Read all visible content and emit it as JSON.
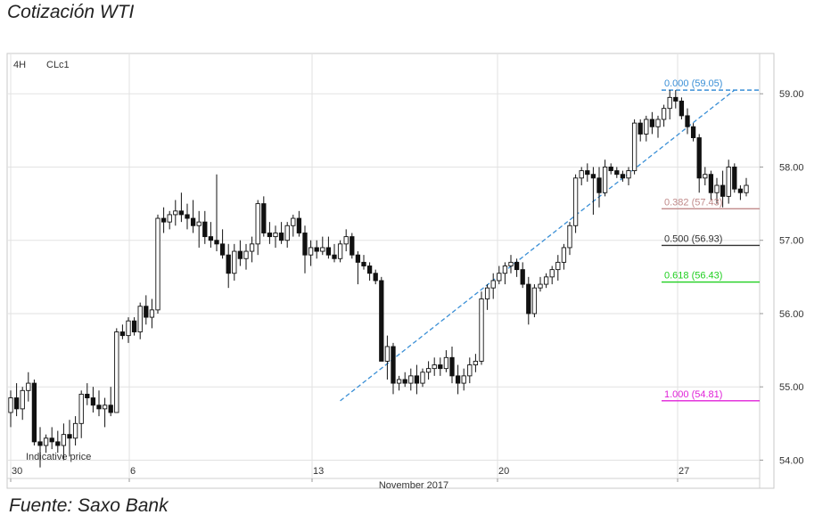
{
  "header": {
    "title": "Cotización WTI"
  },
  "footer": {
    "source": "Fuente: Saxo Bank"
  },
  "chart_data": {
    "type": "candlestick",
    "timeframe": "4H",
    "symbol": "CLc1",
    "note": "Indicative price",
    "xlabel": "November 2017",
    "x_ticks": [
      "30",
      "6",
      "13",
      "20",
      "27"
    ],
    "y_ticks": [
      "54.00",
      "55.00",
      "56.00",
      "57.00",
      "58.00",
      "59.00"
    ],
    "ylim": [
      53.75,
      59.55
    ],
    "grid": true,
    "fib_levels": [
      {
        "label": "0.000 (59.05)",
        "value": 59.05,
        "color": "#3a8fd6"
      },
      {
        "label": "0.382 (57.43)",
        "value": 57.43,
        "color": "#c08a8a"
      },
      {
        "label": "0.500 (56.93)",
        "value": 56.93,
        "color": "#333333"
      },
      {
        "label": "0.618 (56.43)",
        "value": 56.43,
        "color": "#1fcf1f"
      },
      {
        "label": "1.000 (54.81)",
        "value": 54.81,
        "color": "#e020d8"
      }
    ],
    "trend_line": {
      "from": [
        56,
        54.81
      ],
      "to": [
        123,
        59.05
      ]
    },
    "candles": [
      [
        54.65,
        54.95,
        54.45,
        54.85
      ],
      [
        54.85,
        55.05,
        54.6,
        54.7
      ],
      [
        54.7,
        55.0,
        54.55,
        54.95
      ],
      [
        54.95,
        55.2,
        54.8,
        55.05
      ],
      [
        55.05,
        55.1,
        54.2,
        54.25
      ],
      [
        54.25,
        54.45,
        53.9,
        54.2
      ],
      [
        54.2,
        54.35,
        54.1,
        54.3
      ],
      [
        54.3,
        54.45,
        54.15,
        54.25
      ],
      [
        54.25,
        54.4,
        54.1,
        54.2
      ],
      [
        54.2,
        54.5,
        54.0,
        54.35
      ],
      [
        54.35,
        54.55,
        54.05,
        54.3
      ],
      [
        54.3,
        54.6,
        54.2,
        54.5
      ],
      [
        54.5,
        54.95,
        54.3,
        54.9
      ],
      [
        54.9,
        55.05,
        54.75,
        54.85
      ],
      [
        54.85,
        55.0,
        54.65,
        54.75
      ],
      [
        54.75,
        54.95,
        54.6,
        54.7
      ],
      [
        54.7,
        54.85,
        54.45,
        54.75
      ],
      [
        54.75,
        55.0,
        54.6,
        54.65
      ],
      [
        54.65,
        55.8,
        54.65,
        55.75
      ],
      [
        55.75,
        55.85,
        55.65,
        55.7
      ],
      [
        55.7,
        55.95,
        55.6,
        55.9
      ],
      [
        55.9,
        55.95,
        55.7,
        55.75
      ],
      [
        55.75,
        56.15,
        55.65,
        56.1
      ],
      [
        56.1,
        56.25,
        55.85,
        55.95
      ],
      [
        55.95,
        56.2,
        55.8,
        56.05
      ],
      [
        56.05,
        57.35,
        56.0,
        57.3
      ],
      [
        57.3,
        57.45,
        57.1,
        57.25
      ],
      [
        57.25,
        57.4,
        57.15,
        57.35
      ],
      [
        57.35,
        57.55,
        57.2,
        57.4
      ],
      [
        57.4,
        57.65,
        57.25,
        57.35
      ],
      [
        57.35,
        57.5,
        57.15,
        57.3
      ],
      [
        57.3,
        57.55,
        57.1,
        57.2
      ],
      [
        57.2,
        57.4,
        56.9,
        57.25
      ],
      [
        57.25,
        57.4,
        56.95,
        57.05
      ],
      [
        57.05,
        57.25,
        56.9,
        57.0
      ],
      [
        57.0,
        57.9,
        56.85,
        56.95
      ],
      [
        56.95,
        57.15,
        56.75,
        56.8
      ],
      [
        56.8,
        56.95,
        56.35,
        56.55
      ],
      [
        56.55,
        56.95,
        56.45,
        56.85
      ],
      [
        56.85,
        57.0,
        56.65,
        56.75
      ],
      [
        56.75,
        56.95,
        56.6,
        56.85
      ],
      [
        56.85,
        57.05,
        56.7,
        56.95
      ],
      [
        56.95,
        57.55,
        56.8,
        57.5
      ],
      [
        57.5,
        57.6,
        57.05,
        57.1
      ],
      [
        57.1,
        57.25,
        56.95,
        57.05
      ],
      [
        57.05,
        57.2,
        56.9,
        57.1
      ],
      [
        57.1,
        57.25,
        56.95,
        57.0
      ],
      [
        57.0,
        57.25,
        56.9,
        57.2
      ],
      [
        57.2,
        57.35,
        57.05,
        57.3
      ],
      [
        57.3,
        57.4,
        57.05,
        57.1
      ],
      [
        57.1,
        57.2,
        56.55,
        56.8
      ],
      [
        56.8,
        57.0,
        56.65,
        56.9
      ],
      [
        56.9,
        57.0,
        56.75,
        56.85
      ],
      [
        56.85,
        57.05,
        56.8,
        56.9
      ],
      [
        56.9,
        57.05,
        56.75,
        56.8
      ],
      [
        56.8,
        56.95,
        56.7,
        56.75
      ],
      [
        56.75,
        57.0,
        56.7,
        56.95
      ],
      [
        56.95,
        57.15,
        56.85,
        57.05
      ],
      [
        57.05,
        57.1,
        56.75,
        56.8
      ],
      [
        56.8,
        56.85,
        56.4,
        56.7
      ],
      [
        56.7,
        56.8,
        56.6,
        56.65
      ],
      [
        56.65,
        56.7,
        56.45,
        56.55
      ],
      [
        56.55,
        56.6,
        56.4,
        56.45
      ],
      [
        56.45,
        56.5,
        55.4,
        55.35
      ],
      [
        55.35,
        55.7,
        55.1,
        55.55
      ],
      [
        55.55,
        55.6,
        54.9,
        55.05
      ],
      [
        55.05,
        55.15,
        54.95,
        55.1
      ],
      [
        55.1,
        55.2,
        55.0,
        55.05
      ],
      [
        55.05,
        55.25,
        54.95,
        55.15
      ],
      [
        55.15,
        55.3,
        54.9,
        55.05
      ],
      [
        55.05,
        55.25,
        55.0,
        55.2
      ],
      [
        55.2,
        55.35,
        55.1,
        55.25
      ],
      [
        55.25,
        55.4,
        55.15,
        55.3
      ],
      [
        55.3,
        55.4,
        55.15,
        55.25
      ],
      [
        55.25,
        55.5,
        55.2,
        55.4
      ],
      [
        55.4,
        55.55,
        55.05,
        55.15
      ],
      [
        55.15,
        55.3,
        54.9,
        55.05
      ],
      [
        55.05,
        55.25,
        54.95,
        55.15
      ],
      [
        55.15,
        55.4,
        55.05,
        55.3
      ],
      [
        55.3,
        55.45,
        55.2,
        55.35
      ],
      [
        55.35,
        56.3,
        55.3,
        56.2
      ],
      [
        56.2,
        56.4,
        56.05,
        56.35
      ],
      [
        56.35,
        56.55,
        56.2,
        56.45
      ],
      [
        56.45,
        56.65,
        56.4,
        56.55
      ],
      [
        56.55,
        56.7,
        56.4,
        56.65
      ],
      [
        56.65,
        56.8,
        56.55,
        56.7
      ],
      [
        56.7,
        56.75,
        56.5,
        56.6
      ],
      [
        56.6,
        56.7,
        56.35,
        56.4
      ],
      [
        56.4,
        56.5,
        55.85,
        56.0
      ],
      [
        56.0,
        56.4,
        55.95,
        56.35
      ],
      [
        56.35,
        56.5,
        56.3,
        56.4
      ],
      [
        56.4,
        56.55,
        56.35,
        56.5
      ],
      [
        56.5,
        56.65,
        56.4,
        56.6
      ],
      [
        56.6,
        56.8,
        56.45,
        56.7
      ],
      [
        56.7,
        56.95,
        56.6,
        56.9
      ],
      [
        56.9,
        57.25,
        56.8,
        57.2
      ],
      [
        57.2,
        57.9,
        57.1,
        57.85
      ],
      [
        57.85,
        58.0,
        57.75,
        57.95
      ],
      [
        57.95,
        58.05,
        57.8,
        57.9
      ],
      [
        57.9,
        58.0,
        57.35,
        57.85
      ],
      [
        57.85,
        58.0,
        57.45,
        57.65
      ],
      [
        57.65,
        58.1,
        57.6,
        58.0
      ],
      [
        58.0,
        58.05,
        57.9,
        57.95
      ],
      [
        57.95,
        58.0,
        57.85,
        57.9
      ],
      [
        57.9,
        57.95,
        57.8,
        57.85
      ],
      [
        57.85,
        58.0,
        57.75,
        57.95
      ],
      [
        57.95,
        58.65,
        57.9,
        58.6
      ],
      [
        58.6,
        58.65,
        58.35,
        58.45
      ],
      [
        58.45,
        58.7,
        58.35,
        58.65
      ],
      [
        58.65,
        58.75,
        58.45,
        58.55
      ],
      [
        58.55,
        58.7,
        58.4,
        58.65
      ],
      [
        58.65,
        58.85,
        58.55,
        58.8
      ],
      [
        58.8,
        59.05,
        58.65,
        58.95
      ],
      [
        58.95,
        59.05,
        58.8,
        58.9
      ],
      [
        58.9,
        58.95,
        58.65,
        58.7
      ],
      [
        58.7,
        58.8,
        58.45,
        58.55
      ],
      [
        58.55,
        58.6,
        58.35,
        58.4
      ],
      [
        58.4,
        58.45,
        57.65,
        57.85
      ],
      [
        57.85,
        58.0,
        57.75,
        57.9
      ],
      [
        57.9,
        57.95,
        57.55,
        57.65
      ],
      [
        57.65,
        57.85,
        57.5,
        57.75
      ],
      [
        57.75,
        57.95,
        57.45,
        57.6
      ],
      [
        57.6,
        58.1,
        57.5,
        58.0
      ],
      [
        58.0,
        58.05,
        57.65,
        57.7
      ],
      [
        57.7,
        57.75,
        57.55,
        57.65
      ],
      [
        57.65,
        57.85,
        57.6,
        57.75
      ]
    ]
  }
}
